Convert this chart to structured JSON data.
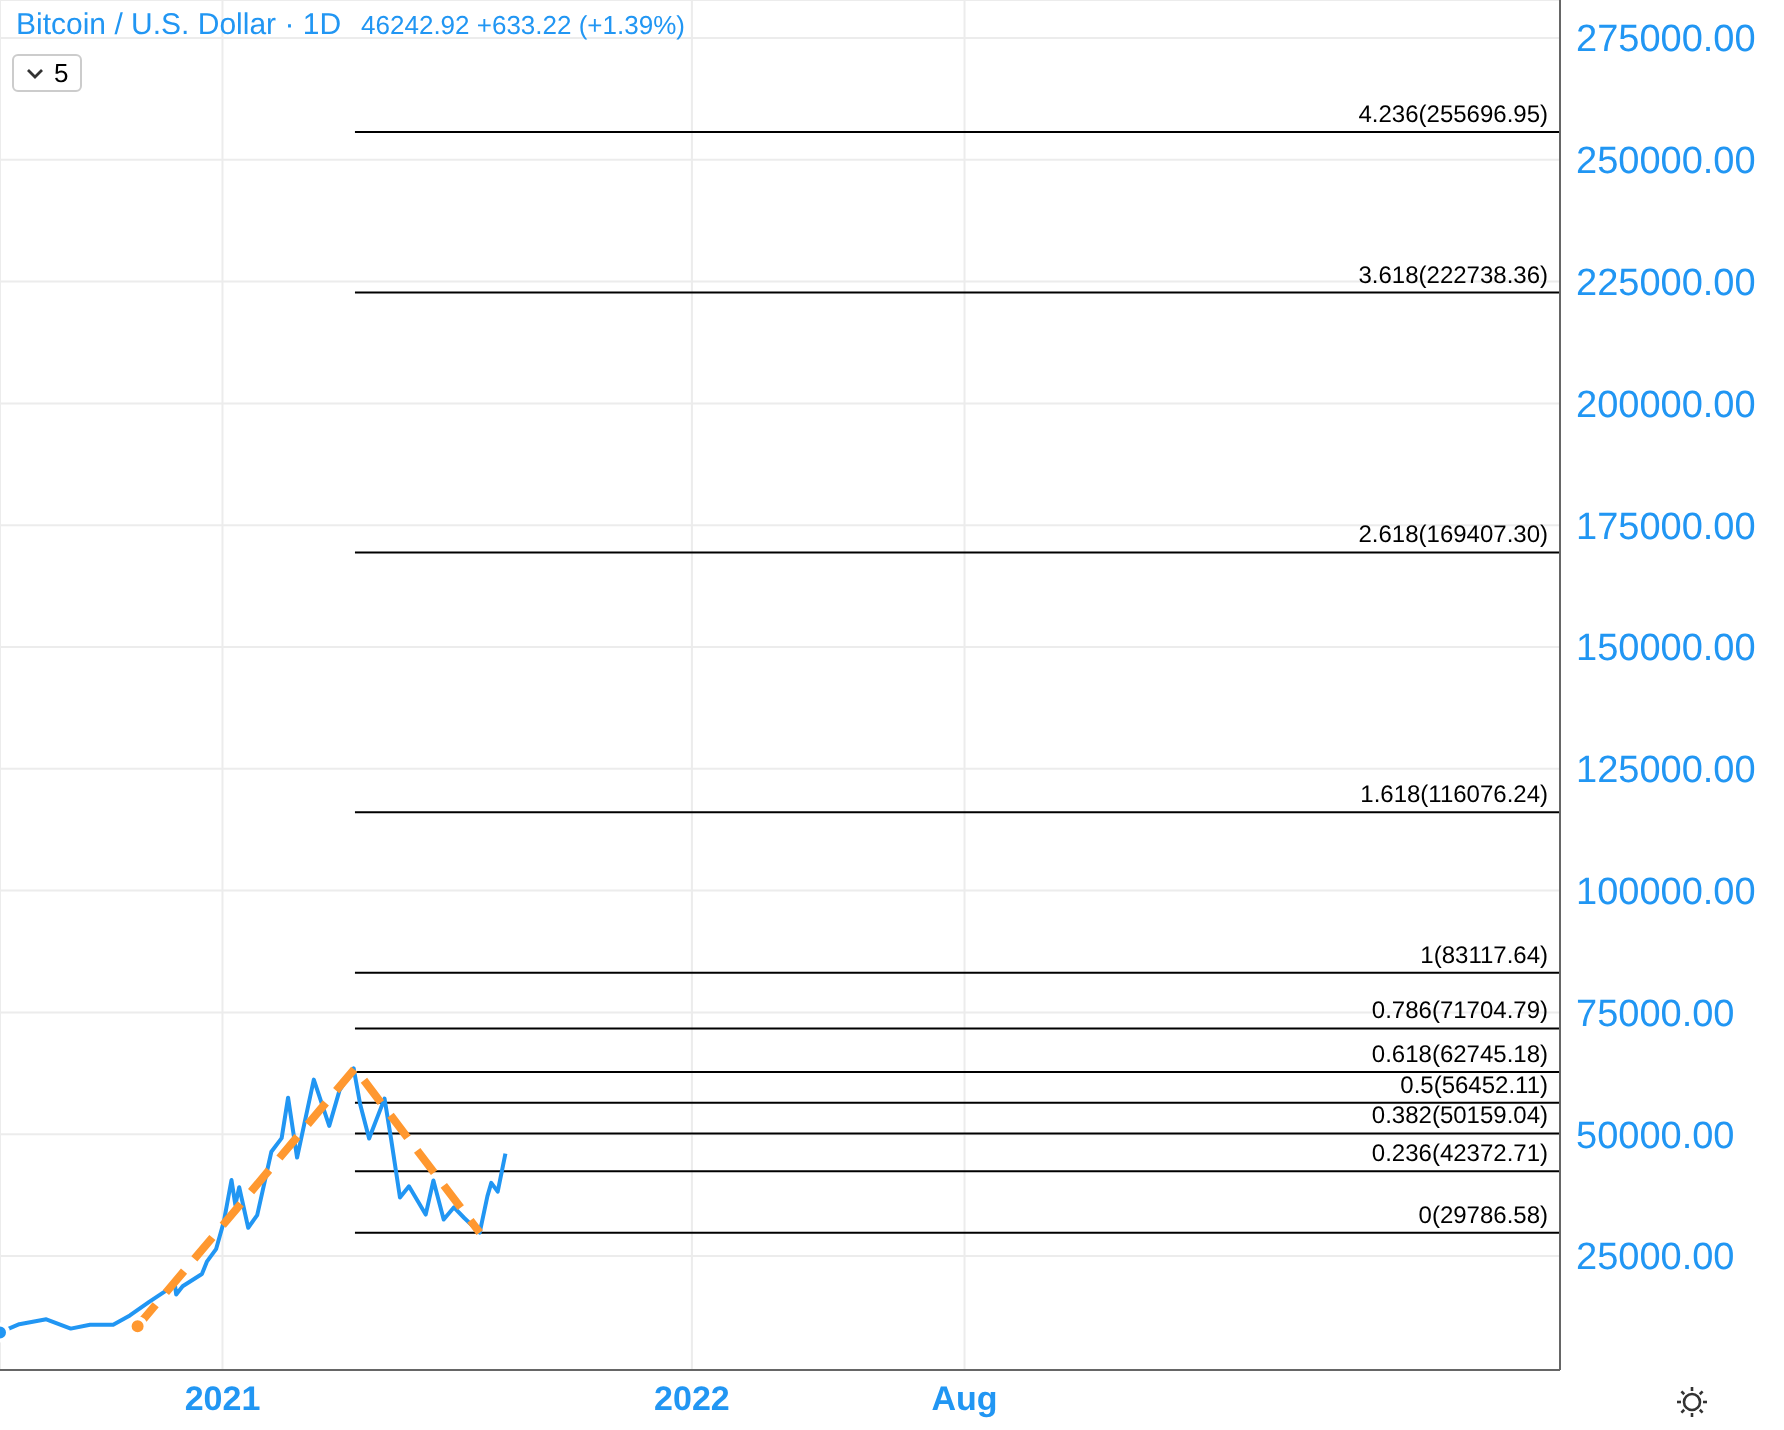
{
  "chart_data": {
    "type": "line",
    "title": "Bitcoin / U.S. Dollar · 1D",
    "subtitle": "46242.92 +633.22 (+1.39%)",
    "annotations": [
      "5"
    ],
    "xlim": [
      "2020-07-12",
      "2023-11-07"
    ],
    "xticks": [
      {
        "value": "2021-01-01",
        "label": "2021"
      },
      {
        "value": "2022-01-01",
        "label": "2022"
      },
      {
        "value": "2022-08-01",
        "label": "Aug"
      }
    ],
    "ylim": [
      1600,
      282800
    ],
    "yticks": [
      {
        "value": 25000,
        "label": "25000.00"
      },
      {
        "value": 50000,
        "label": "50000.00"
      },
      {
        "value": 75000,
        "label": "75000.00"
      },
      {
        "value": 100000,
        "label": "100000.00"
      },
      {
        "value": 125000,
        "label": "125000.00"
      },
      {
        "value": 150000,
        "label": "150000.00"
      },
      {
        "value": 175000,
        "label": "175000.00"
      },
      {
        "value": 200000,
        "label": "200000.00"
      },
      {
        "value": 225000,
        "label": "225000.00"
      },
      {
        "value": 250000,
        "label": "250000.00"
      },
      {
        "value": 275000,
        "label": "275000.00"
      }
    ],
    "grid": true,
    "series": [
      {
        "color": "#2196f3",
        "x": [
          "2020-07-12",
          "2020-07-27",
          "2020-08-17",
          "2020-09-05",
          "2020-09-20",
          "2020-10-08",
          "2020-10-21",
          "2020-11-05",
          "2020-11-17",
          "2020-11-25",
          "2020-11-26",
          "2020-12-01",
          "2020-12-16",
          "2020-12-20",
          "2020-12-27",
          "2021-01-02",
          "2021-01-08",
          "2021-01-11",
          "2021-01-14",
          "2021-01-21",
          "2021-01-28",
          "2021-02-08",
          "2021-02-16",
          "2021-02-21",
          "2021-02-28",
          "2021-03-13",
          "2021-03-25",
          "2021-04-02",
          "2021-04-13",
          "2021-04-18",
          "2021-04-25",
          "2021-05-07",
          "2021-05-12",
          "2021-05-19",
          "2021-05-26",
          "2021-06-08",
          "2021-06-14",
          "2021-06-22",
          "2021-06-30",
          "2021-07-08",
          "2021-07-20",
          "2021-07-26",
          "2021-07-29",
          "2021-08-03",
          "2021-08-09"
        ],
        "values": [
          9300,
          11000,
          12000,
          10100,
          10900,
          10900,
          12800,
          15600,
          17700,
          19100,
          17100,
          18800,
          21300,
          23900,
          26400,
          32000,
          40600,
          35500,
          39100,
          30800,
          33400,
          46400,
          49200,
          57500,
          45200,
          61200,
          51700,
          59000,
          63500,
          56200,
          49100,
          57300,
          49200,
          37000,
          39300,
          33500,
          40500,
          32500,
          35000,
          32800,
          29800,
          37300,
          40000,
          38200,
          46000
        ]
      },
      {
        "type": "line",
        "line_style": "dashed",
        "color": "#ff9830",
        "x": [
          "2020-10-27",
          "2021-04-14",
          "2021-07-20"
        ],
        "values": [
          10600,
          63500,
          29800
        ]
      }
    ],
    "ref_lines": [
      {
        "axis": "y",
        "value": 29786.58,
        "label": "0(29786.58)",
        "color": "#000000"
      },
      {
        "axis": "y",
        "value": 42372.71,
        "label": "0.236(42372.71)",
        "color": "#000000"
      },
      {
        "axis": "y",
        "value": 50159.04,
        "label": "0.382(50159.04)",
        "color": "#000000"
      },
      {
        "axis": "y",
        "value": 56452.11,
        "label": "0.5(56452.11)",
        "color": "#000000"
      },
      {
        "axis": "y",
        "value": 62745.18,
        "label": "0.618(62745.18)",
        "color": "#000000"
      },
      {
        "axis": "y",
        "value": 71704.79,
        "label": "0.786(71704.79)",
        "color": "#000000"
      },
      {
        "axis": "y",
        "value": 83117.64,
        "label": "1(83117.64)",
        "color": "#000000"
      },
      {
        "axis": "y",
        "value": 116076.24,
        "label": "1.618(116076.24)",
        "color": "#000000"
      },
      {
        "axis": "y",
        "value": 169407.3,
        "label": "2.618(169407.30)",
        "color": "#000000"
      },
      {
        "axis": "y",
        "value": 222738.36,
        "label": "3.618(222738.36)",
        "color": "#000000"
      },
      {
        "axis": "y",
        "value": 255696.95,
        "label": "4.236(255696.95)",
        "color": "#000000"
      }
    ]
  }
}
